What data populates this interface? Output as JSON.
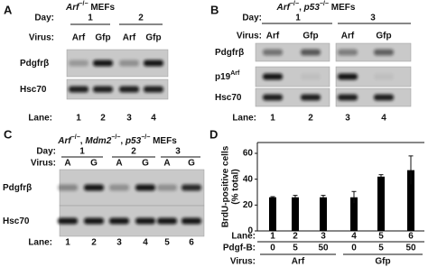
{
  "panels": {
    "A": {
      "label": "A",
      "title": [
        "Arf",
        "−/−",
        " MEFs"
      ],
      "day_label": "Day:",
      "days": [
        "1",
        "2"
      ],
      "virus_label": "Virus:",
      "viruses": [
        "Arf",
        "Gfp",
        "Arf",
        "Gfp"
      ],
      "rows": [
        [
          "Pdgfrβ"
        ],
        [
          "Hsc70"
        ]
      ],
      "lane_label": "Lane:",
      "lanes": [
        "1",
        "2",
        "3",
        "4"
      ]
    },
    "B": {
      "label": "B",
      "title": [
        "Arf",
        "−/−",
        ", ",
        "p53",
        "−/−",
        " MEFs"
      ],
      "day_label": "Day:",
      "days": [
        "1",
        "3"
      ],
      "virus_label": "Virus:",
      "viruses": [
        "Arf",
        "Gfp",
        "Arf",
        "Gfp"
      ],
      "rows": [
        [
          "Pdgfrβ"
        ],
        [
          "p19",
          "Arf"
        ],
        [
          "Hsc70"
        ]
      ],
      "lane_label": "Lane:",
      "lanes": [
        "1",
        "2",
        "3",
        "4"
      ]
    },
    "C": {
      "label": "C",
      "title": [
        "Arf",
        "−/−",
        ", ",
        "Mdm2",
        "−/−",
        ", ",
        "p53",
        "−/−",
        " MEFs"
      ],
      "day_label": "Day:",
      "days": [
        "1",
        "2",
        "3"
      ],
      "virus_label": "Virus:",
      "viruses": [
        "A",
        "G",
        "A",
        "G",
        "A",
        "G"
      ],
      "rows": [
        [
          "Pdgfrβ"
        ],
        [
          "Hsc70"
        ]
      ],
      "lane_label": "Lane:",
      "lanes": [
        "1",
        "2",
        "3",
        "4",
        "5",
        "6"
      ]
    }
  },
  "chart_data": {
    "type": "bar",
    "label": "D",
    "y_label": [
      "BrdU-positive cells",
      "(% total)"
    ],
    "category_label": "Lane:",
    "categories": [
      "1",
      "2",
      "3",
      "4",
      "5",
      "6"
    ],
    "values": [
      26,
      26,
      26,
      26,
      42,
      47
    ],
    "errors": [
      0.5,
      1.5,
      1.5,
      4.5,
      1.5,
      11
    ],
    "color": "#000000",
    "ylim": [
      0,
      60
    ],
    "yticks": [
      0,
      20,
      40,
      60
    ],
    "pdgf_label": "Pdgf-B:",
    "pdgf": [
      "0",
      "5",
      "50",
      "0",
      "5",
      "50"
    ],
    "virus_label": "Virus:",
    "virus_groups": [
      "Arf",
      "Gfp"
    ]
  }
}
